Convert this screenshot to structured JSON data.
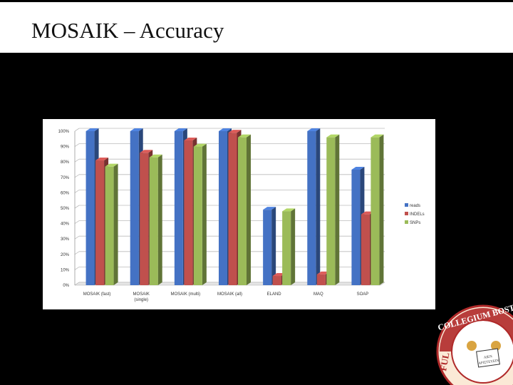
{
  "slide": {
    "title": "MOSAIK – Accuracy"
  },
  "colors": {
    "reads": "#4472C4",
    "indels": "#C0504D",
    "snps": "#9BBB59",
    "background": "#000000"
  },
  "chart_data": {
    "type": "bar",
    "style": "3d-clustered-column",
    "categories": [
      "MOSAIK (fast)",
      "MOSAIK (single)",
      "MOSAIK (multi)",
      "MOSAIK (all)",
      "ELAND",
      "MAQ",
      "SOAP"
    ],
    "category_labels": [
      [
        "MOSAIK (fast)"
      ],
      [
        "MOSAIK",
        "(single)"
      ],
      [
        "MOSAIK (multi)"
      ],
      [
        "MOSAIK (all)"
      ],
      [
        "ELAND"
      ],
      [
        "MAQ"
      ],
      [
        "SOAP"
      ]
    ],
    "series": [
      {
        "name": "reads",
        "color": "#4472C4",
        "values": [
          100,
          100,
          100,
          100,
          49,
          100,
          75
        ]
      },
      {
        "name": "INDELs",
        "color": "#C0504D",
        "values": [
          81,
          86,
          94,
          99,
          6,
          7,
          46
        ]
      },
      {
        "name": "SNPs",
        "color": "#9BBB59",
        "values": [
          77,
          83,
          90,
          96,
          48,
          96,
          96
        ]
      }
    ],
    "yticks": [
      "0%",
      "10%",
      "20%",
      "30%",
      "40%",
      "50%",
      "60%",
      "70%",
      "80%",
      "90%",
      "100%"
    ],
    "ylim": [
      0,
      100
    ],
    "grid": true,
    "legend_position": "right"
  },
  "logo": {
    "text_top": "COLLEGIUM BOSTON",
    "text_left": "FUL",
    "motto": "ΑΙΕΝ ΑΡΙΣΤΕΥΕΙΝ"
  }
}
